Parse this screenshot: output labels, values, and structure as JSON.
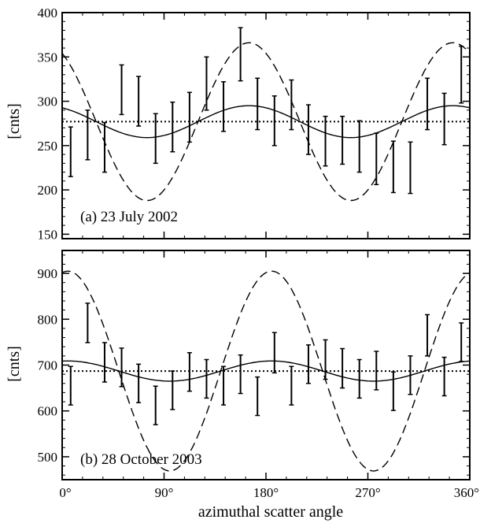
{
  "chart_data": [
    {
      "type": "scatter",
      "panel_label": "(a) 23 July 2002",
      "ylabel": "[cnts]",
      "xlabel": "",
      "xlim": [
        0,
        360
      ],
      "ylim": [
        145,
        400
      ],
      "yticks": [
        150,
        200,
        250,
        300,
        350,
        400
      ],
      "xticks": [
        0,
        90,
        180,
        270,
        360
      ],
      "xtick_labels": [
        "",
        "",
        "",
        "",
        ""
      ],
      "grid": false,
      "measurements": {
        "name": "",
        "x": [
          7.5,
          22.5,
          37.5,
          52.5,
          67.5,
          82.5,
          97.5,
          112.5,
          127.5,
          142.5,
          157.5,
          172.5,
          187.5,
          202.5,
          217.5,
          232.5,
          247.5,
          262.5,
          277.5,
          292.5,
          307.5,
          322.5,
          337.5,
          352.5
        ],
        "y": [
          243,
          262,
          248,
          313,
          300,
          258,
          271,
          282,
          320,
          294,
          353,
          297,
          278,
          296,
          268,
          255,
          256,
          249,
          235,
          226,
          225,
          297,
          280,
          330
        ],
        "err": [
          28,
          28,
          28,
          28,
          28,
          28,
          28,
          28,
          30,
          28,
          30,
          29,
          28,
          28,
          28,
          28,
          27,
          29,
          29,
          29,
          29,
          29,
          29,
          32
        ]
      },
      "reference_lines": [
        {
          "style": "dotted",
          "y": 277
        },
        {
          "style": "solid",
          "mean": 277,
          "amplitude": 18,
          "phase_deg": 165
        },
        {
          "style": "dashed",
          "mean": 277,
          "amplitude": 89,
          "phase_deg": 165
        }
      ]
    },
    {
      "type": "scatter",
      "panel_label": "(b) 28 October 2003",
      "ylabel": "[cnts]",
      "xlabel": "azimuthal scatter angle",
      "xlim": [
        0,
        360
      ],
      "ylim": [
        450,
        950
      ],
      "yticks": [
        500,
        600,
        700,
        800,
        900
      ],
      "xticks": [
        0,
        90,
        180,
        270,
        360
      ],
      "xtick_labels": [
        "0°",
        "90°",
        "180°",
        "270°",
        "360°"
      ],
      "grid": false,
      "measurements": {
        "name": "",
        "x": [
          7.5,
          22.5,
          37.5,
          52.5,
          67.5,
          82.5,
          97.5,
          112.5,
          127.5,
          142.5,
          157.5,
          172.5,
          187.5,
          202.5,
          217.5,
          232.5,
          247.5,
          262.5,
          277.5,
          292.5,
          307.5,
          322.5,
          337.5,
          352.5
        ],
        "y": [
          655,
          792,
          706,
          695,
          660,
          612,
          645,
          685,
          670,
          655,
          680,
          632,
          727,
          655,
          702,
          712,
          693,
          670,
          688,
          643,
          678,
          765,
          675,
          750
        ],
        "err": [
          42,
          43,
          43,
          42,
          42,
          42,
          42,
          42,
          42,
          42,
          42,
          42,
          44,
          42,
          42,
          43,
          43,
          42,
          42,
          42,
          42,
          45,
          42,
          42
        ]
      },
      "reference_lines": [
        {
          "style": "dotted",
          "y": 687
        },
        {
          "style": "solid",
          "mean": 687,
          "amplitude": 22,
          "phase_deg": 5
        },
        {
          "style": "dashed",
          "mean": 687,
          "amplitude": 218,
          "phase_deg": 5
        }
      ]
    }
  ]
}
